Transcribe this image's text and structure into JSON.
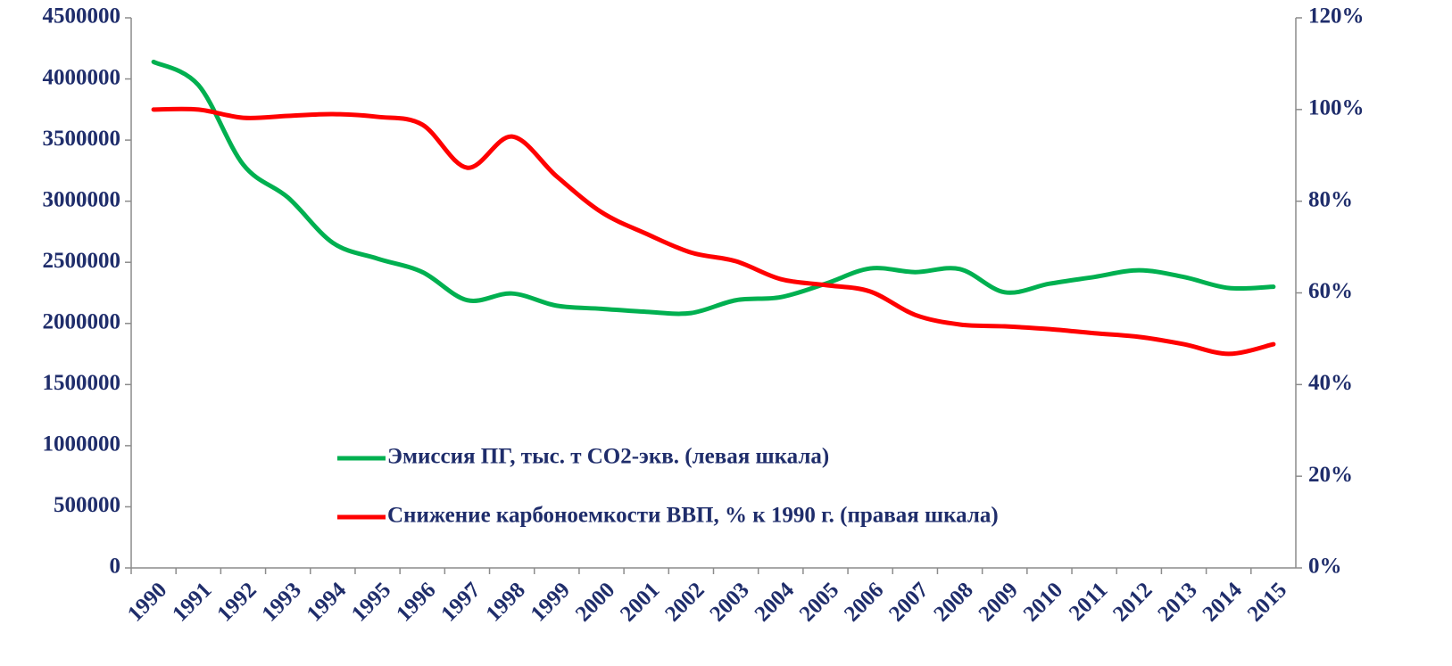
{
  "chart_data": {
    "type": "line",
    "categories": [
      "1990",
      "1991",
      "1992",
      "1993",
      "1994",
      "1995",
      "1996",
      "1997",
      "1998",
      "1999",
      "2000",
      "2001",
      "2002",
      "2003",
      "2004",
      "2005",
      "2006",
      "2007",
      "2008",
      "2009",
      "2010",
      "2011",
      "2012",
      "2013",
      "2014",
      "2015"
    ],
    "series": [
      {
        "name": "Эмиссия ПГ, тыс. т СО2-экв. (левая шкала)",
        "color": "#00b050",
        "values": [
          4140000,
          3950000,
          3300000,
          3030000,
          2660000,
          2530000,
          2420000,
          2190000,
          2245000,
          2145000,
          2120000,
          2095000,
          2085000,
          2190000,
          2215000,
          2325000,
          2450000,
          2420000,
          2445000,
          2255000,
          2325000,
          2380000,
          2435000,
          2380000,
          2290000,
          2300000
        ]
      },
      {
        "name": "Снижение карбоноемкости ВВП, % к 1990 г. (правая шкала)",
        "color": "#ff0000",
        "axis": "y2",
        "values": [
          100,
          100,
          98.2,
          98.6,
          99,
          98.4,
          96.7,
          87.3,
          94.1,
          85.4,
          77.6,
          72.9,
          68.8,
          66.9,
          63,
          61.7,
          60.3,
          55.2,
          53.1,
          52.7,
          52.1,
          51.2,
          50.4,
          48.8,
          46.7,
          48.8
        ]
      }
    ],
    "ylim": [
      0,
      4500000
    ],
    "yticks": [
      0,
      500000,
      1000000,
      1500000,
      2000000,
      2500000,
      3000000,
      3500000,
      4000000,
      4500000
    ],
    "y2lim": [
      0,
      120
    ],
    "y2ticks": [
      {
        "value": 0,
        "label": "0%"
      },
      {
        "value": 20,
        "label": "20%"
      },
      {
        "value": 40,
        "label": "40%"
      },
      {
        "value": 60,
        "label": "60%"
      },
      {
        "value": 80,
        "label": "80%"
      },
      {
        "value": 100,
        "label": "100%"
      },
      {
        "value": 120,
        "label": "120%"
      }
    ],
    "legend": "bottom",
    "grid": false
  }
}
